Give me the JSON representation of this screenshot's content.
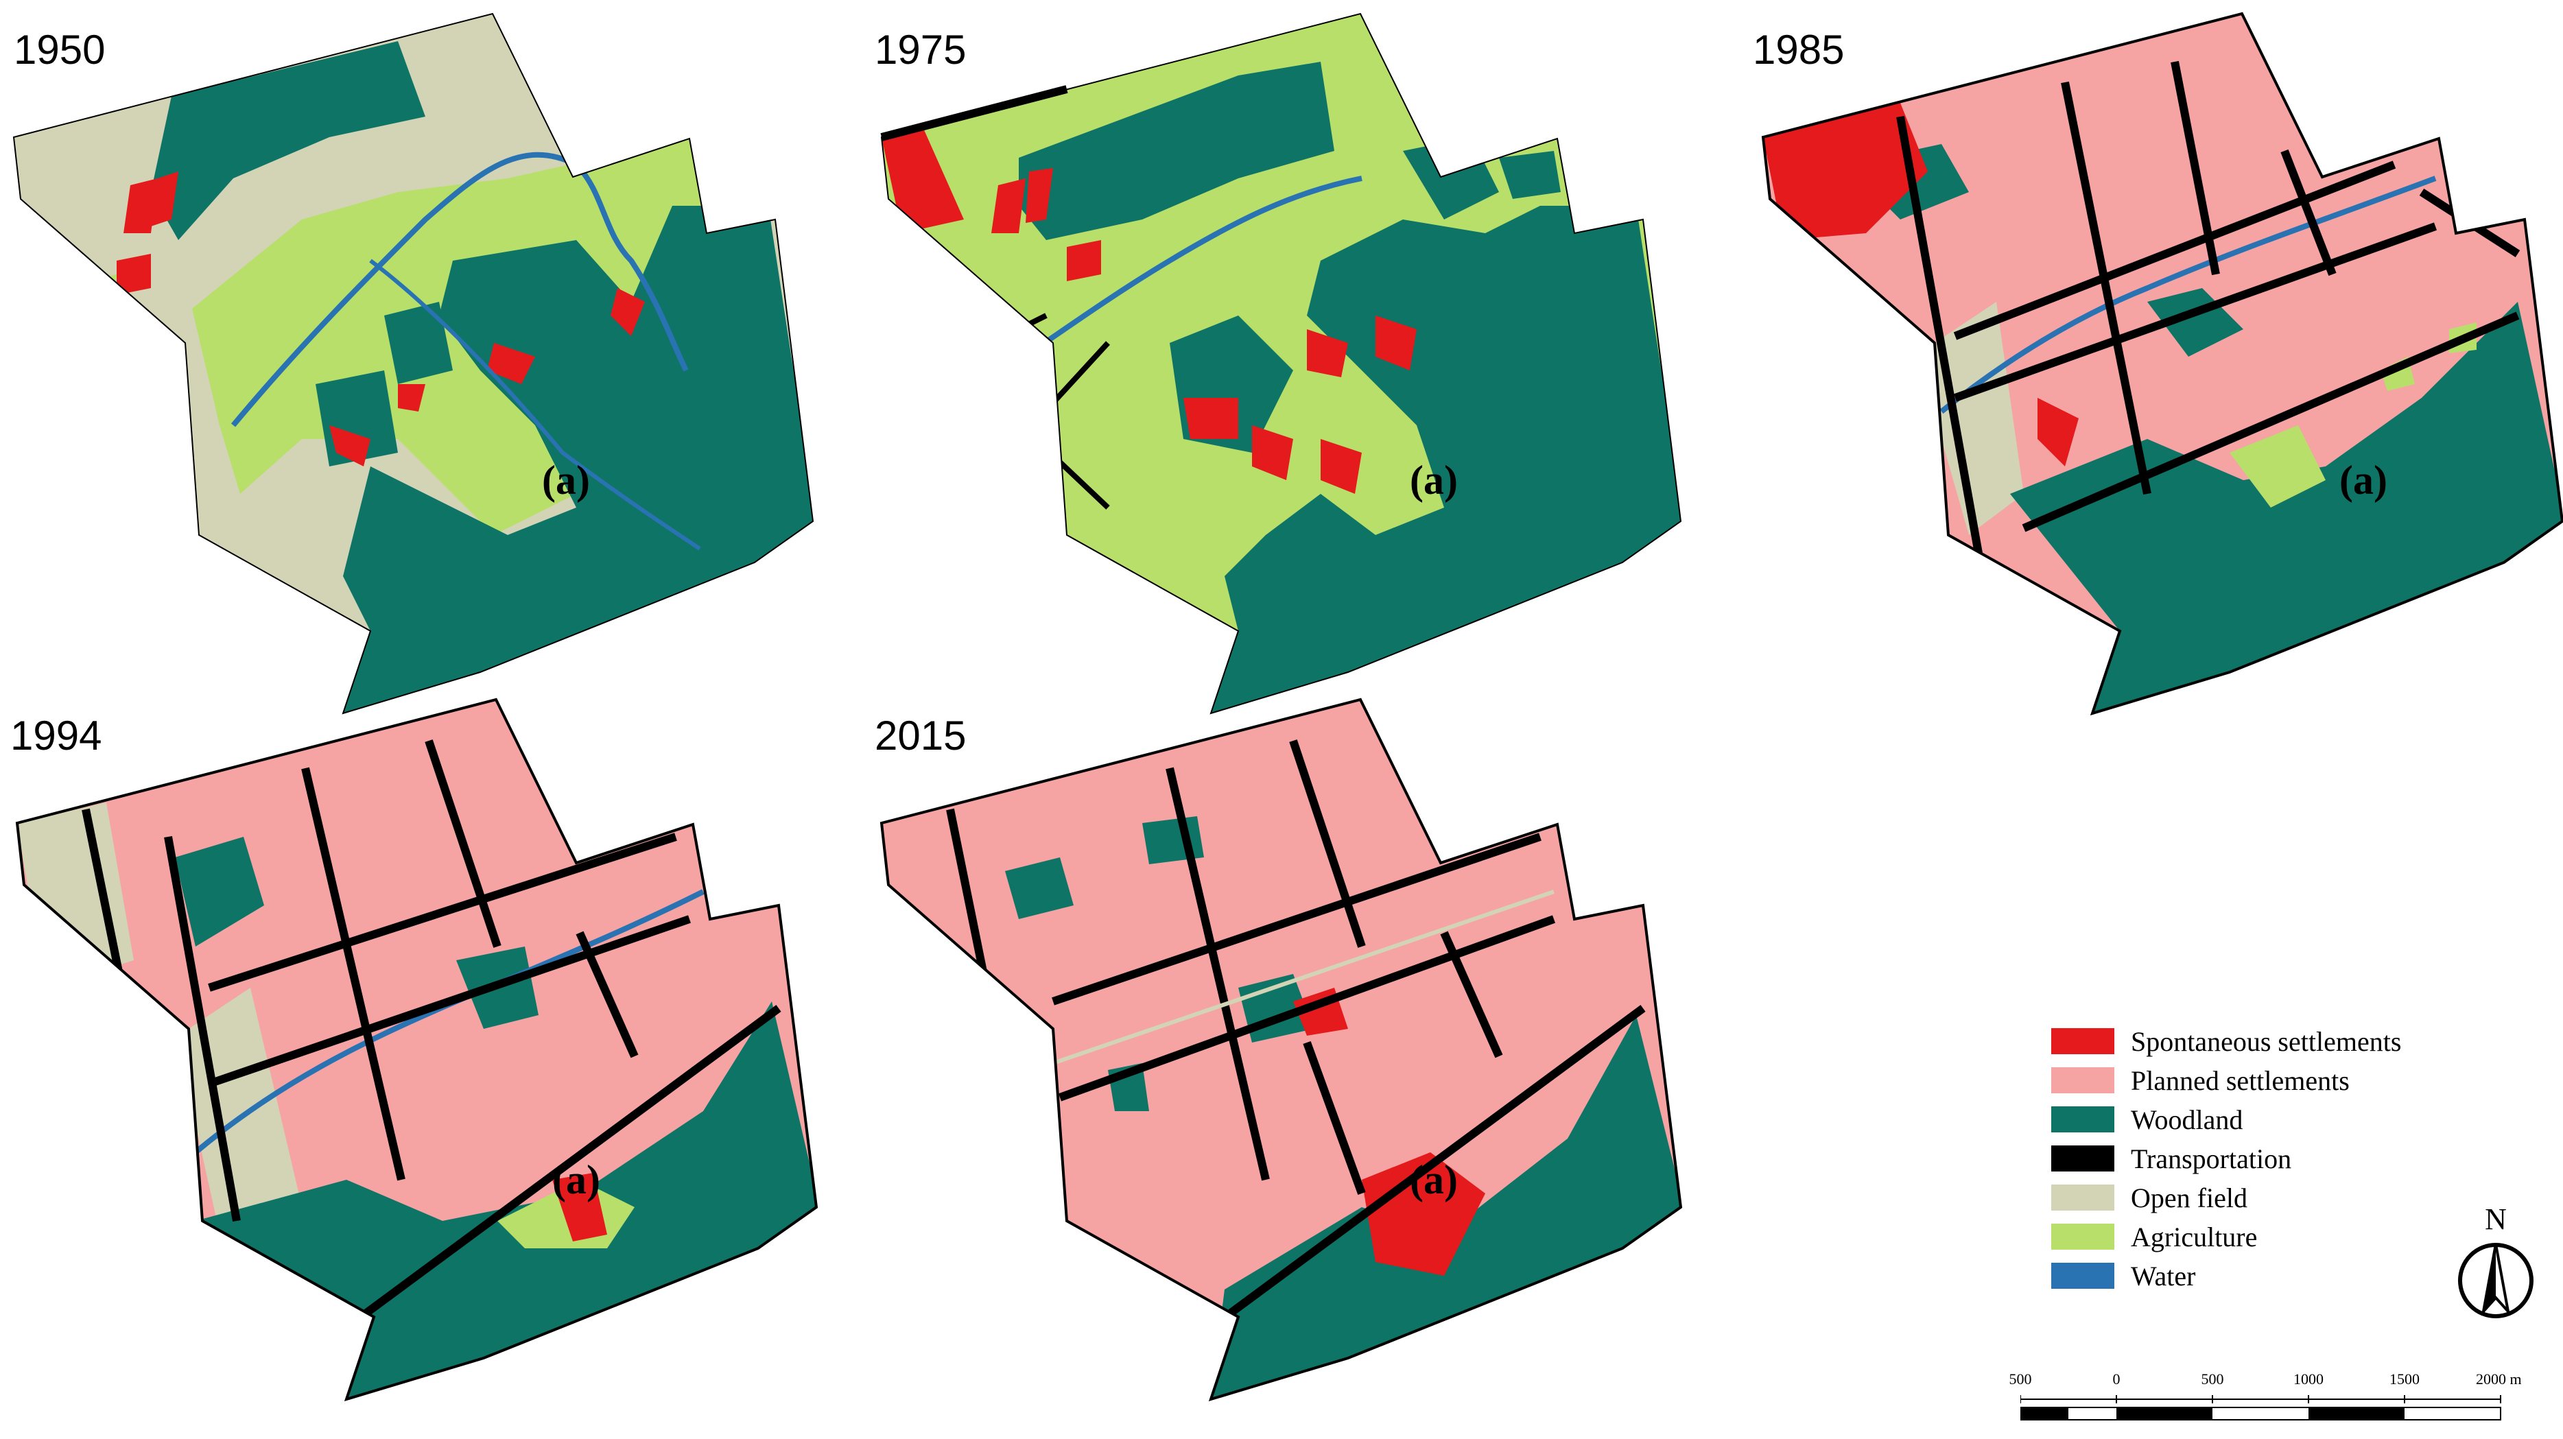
{
  "colors": {
    "spontaneous": "#e41a1c",
    "planned": "#f6a3a3",
    "woodland": "#0d7466",
    "transportation": "#000000",
    "open_field": "#d3d3b6",
    "agriculture": "#b8df6a",
    "water": "#2a73b3"
  },
  "panels": [
    {
      "year": "1950",
      "label": "(a)"
    },
    {
      "year": "1975",
      "label": "(a)"
    },
    {
      "year": "1985",
      "label": "(a)"
    },
    {
      "year": "1994",
      "label": "(a)"
    },
    {
      "year": "2015",
      "label": "(a)"
    }
  ],
  "legend": {
    "items": [
      {
        "label": "Spontaneous settlements",
        "color": "#e41a1c"
      },
      {
        "label": "Planned settlements",
        "color": "#f6a3a3"
      },
      {
        "label": "Woodland",
        "color": "#0d7466"
      },
      {
        "label": "Transportation",
        "color": "#000000"
      },
      {
        "label": "Open field",
        "color": "#d3d3b6"
      },
      {
        "label": "Agriculture",
        "color": "#b8df6a"
      },
      {
        "label": "Water",
        "color": "#2a73b3"
      }
    ]
  },
  "north_arrow": {
    "label": "N",
    "icon": "north-arrow-icon"
  },
  "scale_bar": {
    "ticks": [
      "500",
      "0",
      "500",
      "1000",
      "1500",
      "2000"
    ],
    "unit": "m"
  }
}
